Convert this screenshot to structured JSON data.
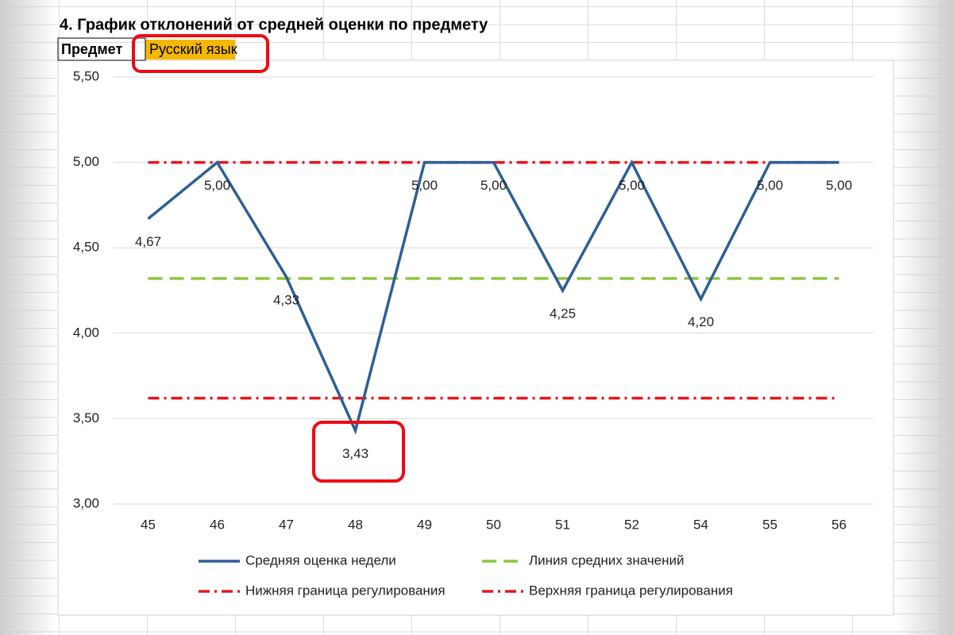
{
  "sheet": {
    "title": "4. График отклонений от средней оценки по предмету",
    "subject_label": "Предмет",
    "subject_value": "Русский язык"
  },
  "chart_data": {
    "type": "line",
    "categories": [
      "45",
      "46",
      "47",
      "48",
      "49",
      "50",
      "51",
      "52",
      "54",
      "55",
      "56"
    ],
    "ylim": [
      3,
      5.5
    ],
    "yticks": [
      {
        "value": 3,
        "label": "3,00"
      },
      {
        "value": 3.5,
        "label": "3,50"
      },
      {
        "value": 4,
        "label": "4,00"
      },
      {
        "value": 4.5,
        "label": "4,50"
      },
      {
        "value": 5,
        "label": "5,00"
      },
      {
        "value": 5.5,
        "label": "5,50"
      }
    ],
    "grid": true,
    "series": [
      {
        "name": "Средняя оценка недели",
        "color": "#2e5f96",
        "line_style": "solid",
        "values": [
          4.67,
          5,
          4.33,
          3.43,
          5,
          5,
          4.25,
          5,
          4.2,
          5,
          5
        ],
        "value_labels": [
          "4,67",
          "5,00",
          "4,33",
          "3,43",
          "5,00",
          "5,00",
          "4,25",
          "5,00",
          "4,20",
          "5,00",
          "5,00"
        ]
      },
      {
        "name": "Линия средних значений",
        "color": "#8cc63f",
        "line_style": "dashed",
        "values": [
          4.32,
          4.32,
          4.32,
          4.32,
          4.32,
          4.32,
          4.32,
          4.32,
          4.32,
          4.32,
          4.32
        ]
      },
      {
        "name": "Нижняя граница регулирования",
        "color": "#e8161b",
        "line_style": "dashdot",
        "values": [
          3.62,
          3.62,
          3.62,
          3.62,
          3.62,
          3.62,
          3.62,
          3.62,
          3.62,
          3.62,
          3.62
        ]
      },
      {
        "name": "Верхняя граница регулирования",
        "color": "#e8161b",
        "line_style": "dashdot",
        "values": [
          5,
          5,
          5,
          5,
          5,
          5,
          5,
          5,
          5,
          5,
          5
        ]
      }
    ]
  }
}
